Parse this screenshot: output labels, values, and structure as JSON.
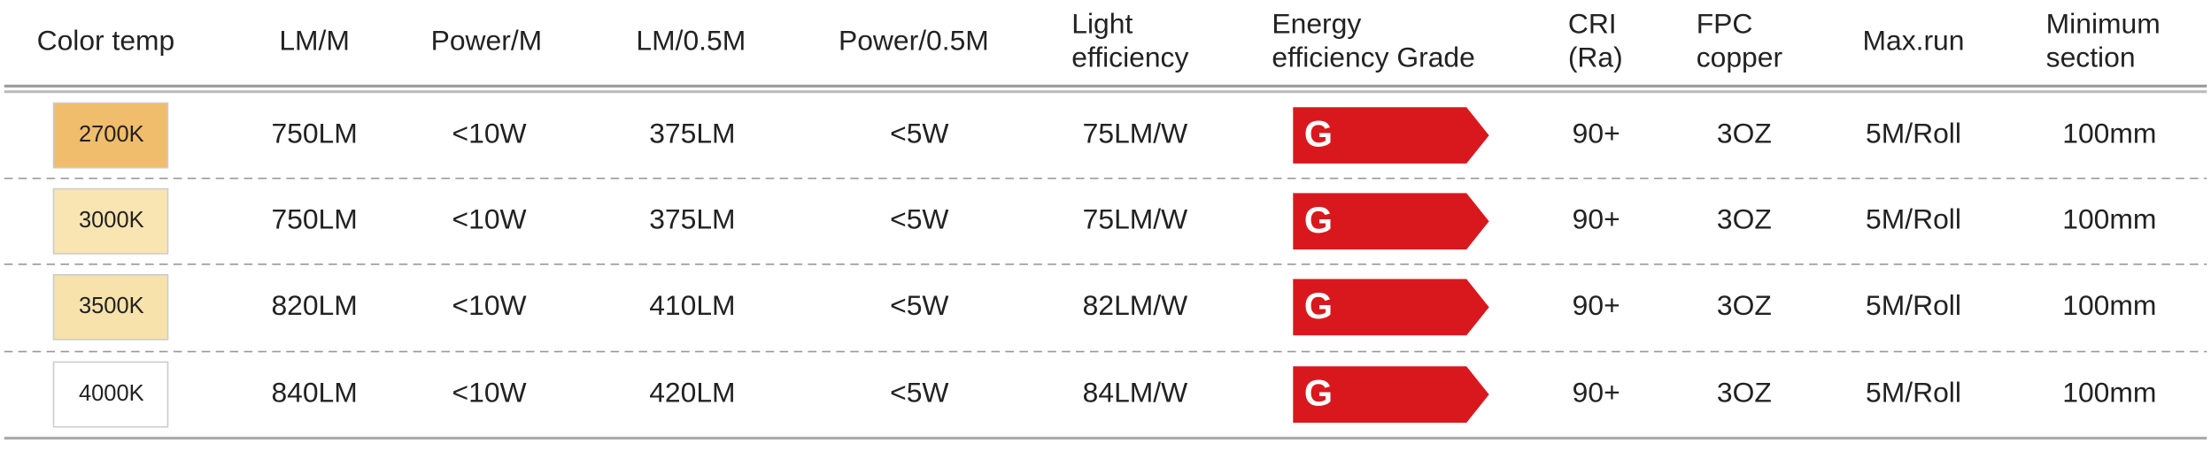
{
  "table": {
    "header": [
      [
        "Color temp"
      ],
      [
        "LM/M"
      ],
      [
        "Power/M"
      ],
      [
        "LM/0.5M"
      ],
      [
        "Power/0.5M"
      ],
      [
        "Light",
        "efficiency"
      ],
      [
        "Energy",
        "efficiency Grade"
      ],
      [
        "CRI",
        "(Ra)"
      ],
      [
        "FPC",
        "copper"
      ],
      [
        "Max.run"
      ],
      [
        "Minimum",
        "section"
      ]
    ],
    "rows": [
      {
        "swatch_color": "#f0bd6c",
        "cells": [
          "2700K",
          "750LM",
          "<10W",
          "375LM",
          "<5W",
          "75LM/W",
          "G",
          "90+",
          "3OZ",
          "5M/Roll",
          "100mm"
        ]
      },
      {
        "swatch_color": "#f9e5b2",
        "cells": [
          "3000K",
          "750LM",
          "<10W",
          "375LM",
          "<5W",
          "75LM/W",
          "G",
          "90+",
          "3OZ",
          "5M/Roll",
          "100mm"
        ]
      },
      {
        "swatch_color": "#f7e2ab",
        "cells": [
          "3500K",
          "820LM",
          "<10W",
          "410LM",
          "<5W",
          "82LM/W",
          "G",
          "90+",
          "3OZ",
          "5M/Roll",
          "100mm"
        ]
      },
      {
        "swatch_color": "#ffffff",
        "cells": [
          "4000K",
          "840LM",
          "<10W",
          "420LM",
          "<5W",
          "84LM/W",
          "G",
          "90+",
          "3OZ",
          "5M/Roll",
          "100mm"
        ]
      }
    ]
  }
}
